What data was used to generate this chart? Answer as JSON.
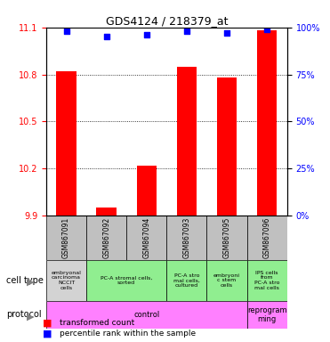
{
  "title": "GDS4124 / 218379_at",
  "samples": [
    "GSM867091",
    "GSM867092",
    "GSM867094",
    "GSM867093",
    "GSM867095",
    "GSM867096"
  ],
  "bar_values": [
    10.82,
    9.95,
    10.22,
    10.85,
    10.78,
    11.08
  ],
  "percentile_values": [
    98,
    95,
    96,
    98,
    97,
    99
  ],
  "ylim_left": [
    9.9,
    11.1
  ],
  "ylim_right": [
    0,
    100
  ],
  "yticks_left": [
    9.9,
    10.2,
    10.5,
    10.8,
    11.1
  ],
  "yticks_right": [
    0,
    25,
    50,
    75,
    100
  ],
  "bar_color": "#ff0000",
  "dot_color": "#0000ff",
  "cell_types": [
    {
      "label": "embryonal\ncarcinoma\nNCCIT\ncells",
      "span": [
        0,
        1
      ],
      "color": "#d3d3d3"
    },
    {
      "label": "PC-A stromal cells,\nsorted",
      "span": [
        1,
        3
      ],
      "color": "#90ee90"
    },
    {
      "label": "PC-A stro\nmal cells,\ncultured",
      "span": [
        3,
        4
      ],
      "color": "#90ee90"
    },
    {
      "label": "embryoni\nc stem\ncells",
      "span": [
        4,
        5
      ],
      "color": "#90ee90"
    },
    {
      "label": "IPS cells\nfrom\nPC-A stro\nmal cells",
      "span": [
        5,
        6
      ],
      "color": "#90ee90"
    }
  ],
  "protocols": [
    {
      "label": "control",
      "span": [
        0,
        5
      ],
      "color": "#ff80ff"
    },
    {
      "label": "reprogram\nming",
      "span": [
        5,
        6
      ],
      "color": "#ff80ff"
    }
  ],
  "legend_items": [
    {
      "color": "#ff0000",
      "label": "transformed count"
    },
    {
      "color": "#0000ff",
      "label": "percentile rank within the sample"
    }
  ]
}
